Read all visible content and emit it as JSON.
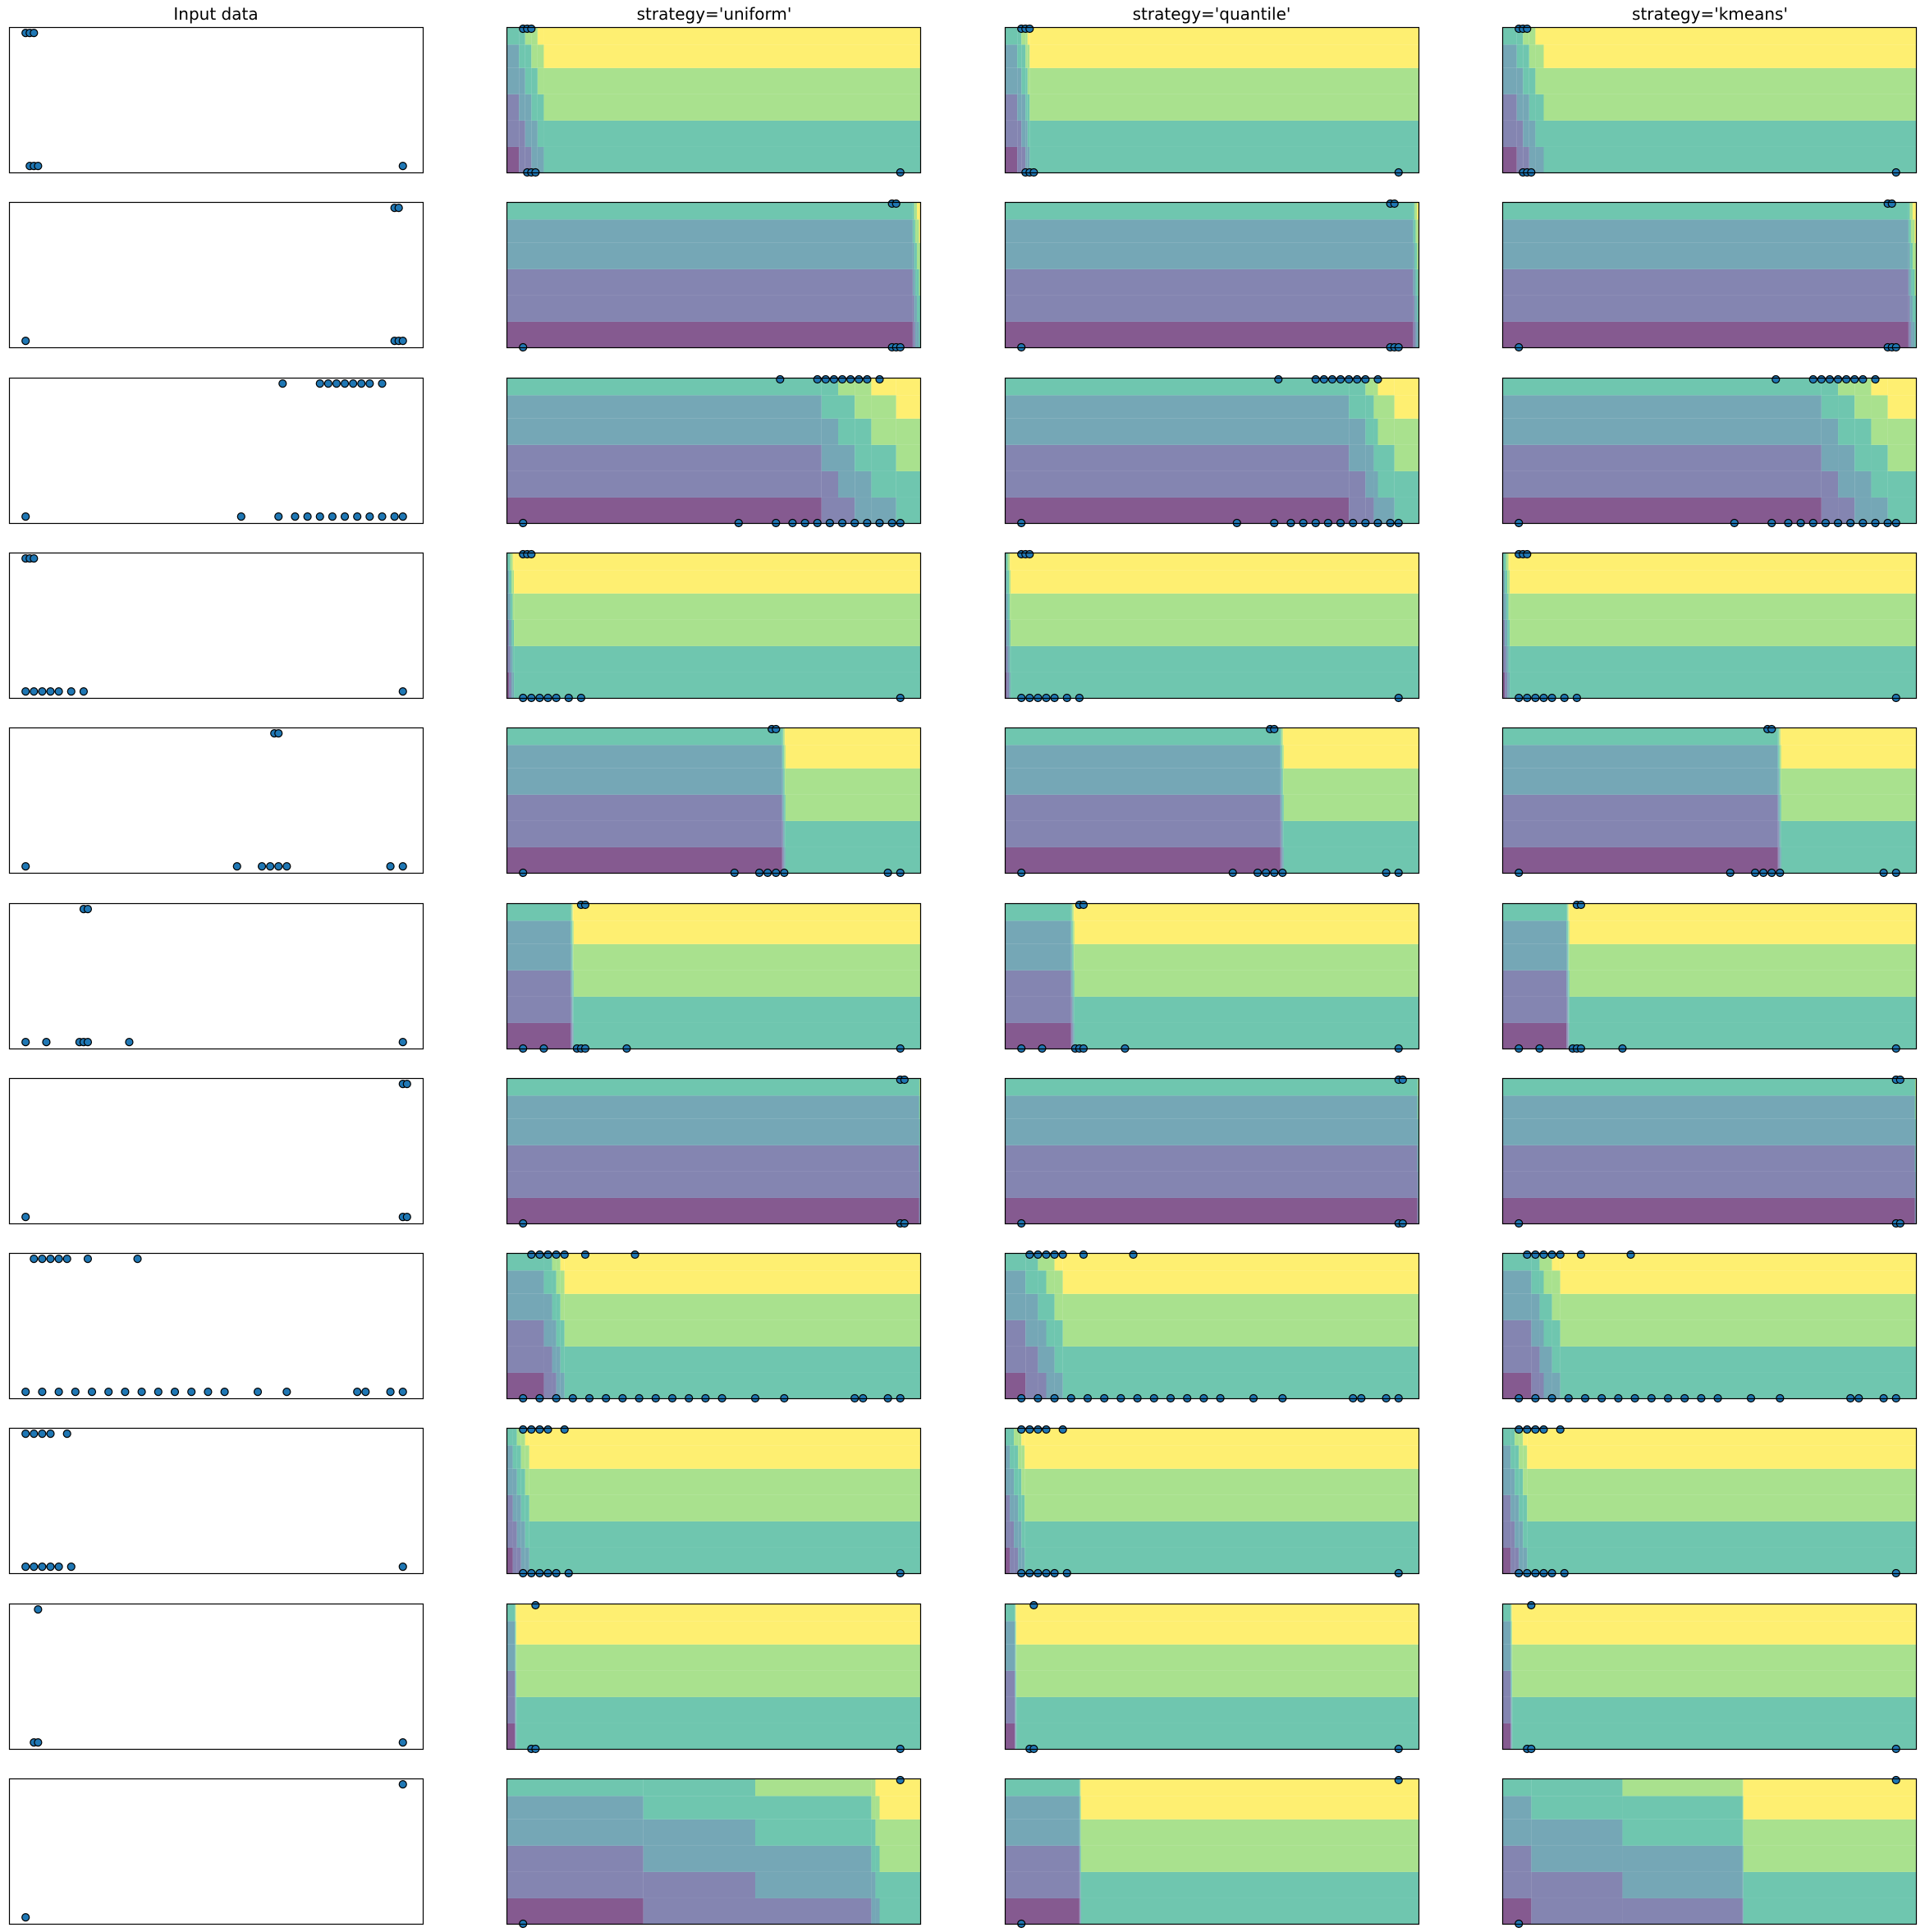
{
  "titles": [
    "Input data",
    "strategy='uniform'",
    "strategy='quantile'",
    "strategy='kmeans'"
  ],
  "colors": {
    "marker_face": "#1f77b4",
    "marker_edge": "#000000",
    "frame": "#000000",
    "colormap": "viridis",
    "overlay_alpha": 0.55
  },
  "chart_data": {
    "type": "scatter",
    "grid": false,
    "ticks": "none",
    "n_bins": 6,
    "rows": [
      {
        "xlim": [
          0,
          1
        ],
        "ylim": [
          0,
          1
        ],
        "points": [
          [
            0.04,
            0.96
          ],
          [
            0.05,
            0.96
          ],
          [
            0.06,
            0.96
          ],
          [
            0.05,
            0.05
          ],
          [
            0.06,
            0.05
          ],
          [
            0.07,
            0.05
          ],
          [
            0.95,
            0.05
          ]
        ],
        "edges": {
          "uniform": [
            0,
            0.03,
            0.045,
            0.06,
            0.075,
            0.09,
            1
          ],
          "quantile": [
            0,
            0.03,
            0.04,
            0.05,
            0.055,
            0.06,
            1
          ],
          "kmeans": [
            0,
            0.035,
            0.05,
            0.065,
            0.08,
            0.1,
            1
          ]
        }
      },
      {
        "xlim": [
          0,
          1
        ],
        "ylim": [
          0,
          1
        ],
        "points": [
          [
            0.93,
            0.96
          ],
          [
            0.94,
            0.96
          ],
          [
            0.04,
            0.05
          ],
          [
            0.93,
            0.05
          ],
          [
            0.94,
            0.05
          ],
          [
            0.95,
            0.05
          ]
        ],
        "edges": {
          "uniform": [
            0,
            0.98,
            0.983,
            0.986,
            0.99,
            0.995,
            1
          ],
          "quantile": [
            0,
            0.985,
            0.988,
            0.991,
            0.994,
            0.997,
            1
          ],
          "kmeans": [
            0,
            0.98,
            0.983,
            0.986,
            0.99,
            0.995,
            1
          ]
        }
      },
      {
        "xlim": [
          0,
          1
        ],
        "ylim": [
          0,
          1
        ],
        "points": [
          [
            0.66,
            0.96
          ],
          [
            0.75,
            0.96
          ],
          [
            0.77,
            0.96
          ],
          [
            0.79,
            0.96
          ],
          [
            0.81,
            0.96
          ],
          [
            0.83,
            0.96
          ],
          [
            0.85,
            0.96
          ],
          [
            0.87,
            0.96
          ],
          [
            0.9,
            0.96
          ],
          [
            0.04,
            0.05
          ],
          [
            0.56,
            0.05
          ],
          [
            0.65,
            0.05
          ],
          [
            0.69,
            0.05
          ],
          [
            0.72,
            0.05
          ],
          [
            0.75,
            0.05
          ],
          [
            0.78,
            0.05
          ],
          [
            0.81,
            0.05
          ],
          [
            0.84,
            0.05
          ],
          [
            0.87,
            0.05
          ],
          [
            0.9,
            0.05
          ],
          [
            0.93,
            0.05
          ],
          [
            0.95,
            0.05
          ]
        ],
        "edges": {
          "uniform": [
            0,
            0.76,
            0.8,
            0.84,
            0.88,
            0.94,
            1
          ],
          "quantile": [
            0,
            0.83,
            0.87,
            0.89,
            0.9,
            0.94,
            1
          ],
          "kmeans": [
            0,
            0.77,
            0.81,
            0.85,
            0.89,
            0.93,
            1
          ]
        }
      },
      {
        "xlim": [
          0,
          1
        ],
        "ylim": [
          0,
          1
        ],
        "points": [
          [
            0.04,
            0.96
          ],
          [
            0.05,
            0.96
          ],
          [
            0.06,
            0.96
          ],
          [
            0.04,
            0.05
          ],
          [
            0.06,
            0.05
          ],
          [
            0.08,
            0.05
          ],
          [
            0.1,
            0.05
          ],
          [
            0.12,
            0.05
          ],
          [
            0.15,
            0.05
          ],
          [
            0.18,
            0.05
          ],
          [
            0.95,
            0.05
          ]
        ],
        "edges": {
          "uniform": [
            0,
            0.006,
            0.009,
            0.012,
            0.015,
            0.018,
            1
          ],
          "quantile": [
            0,
            0.004,
            0.007,
            0.01,
            0.012,
            0.014,
            1
          ],
          "kmeans": [
            0,
            0.006,
            0.009,
            0.012,
            0.015,
            0.018,
            1
          ]
        }
      },
      {
        "xlim": [
          0,
          1
        ],
        "ylim": [
          0,
          1
        ],
        "points": [
          [
            0.64,
            0.96
          ],
          [
            0.65,
            0.96
          ],
          [
            0.04,
            0.05
          ],
          [
            0.55,
            0.05
          ],
          [
            0.61,
            0.05
          ],
          [
            0.63,
            0.05
          ],
          [
            0.65,
            0.05
          ],
          [
            0.67,
            0.05
          ],
          [
            0.92,
            0.05
          ],
          [
            0.95,
            0.05
          ]
        ],
        "edges": {
          "uniform": [
            0,
            0.665,
            0.667,
            0.669,
            0.671,
            0.673,
            1
          ],
          "quantile": [
            0,
            0.665,
            0.667,
            0.669,
            0.671,
            0.673,
            1
          ],
          "kmeans": [
            0,
            0.665,
            0.667,
            0.669,
            0.671,
            0.673,
            1
          ]
        }
      },
      {
        "xlim": [
          0,
          1
        ],
        "ylim": [
          0,
          1
        ],
        "points": [
          [
            0.18,
            0.96
          ],
          [
            0.19,
            0.96
          ],
          [
            0.04,
            0.05
          ],
          [
            0.09,
            0.05
          ],
          [
            0.17,
            0.05
          ],
          [
            0.18,
            0.05
          ],
          [
            0.19,
            0.05
          ],
          [
            0.29,
            0.05
          ],
          [
            0.95,
            0.05
          ]
        ],
        "edges": {
          "uniform": [
            0,
            0.155,
            0.157,
            0.159,
            0.16,
            0.162,
            1
          ],
          "quantile": [
            0,
            0.16,
            0.162,
            0.164,
            0.166,
            0.168,
            1
          ],
          "kmeans": [
            0,
            0.155,
            0.157,
            0.159,
            0.16,
            0.162,
            1
          ]
        }
      },
      {
        "xlim": [
          0,
          1
        ],
        "ylim": [
          0,
          1
        ],
        "points": [
          [
            0.95,
            0.96
          ],
          [
            0.96,
            0.96
          ],
          [
            0.04,
            0.05
          ],
          [
            0.95,
            0.05
          ],
          [
            0.96,
            0.05
          ]
        ],
        "edges": {
          "uniform": [
            0,
            0.995,
            0.996,
            0.997,
            0.998,
            0.999,
            1
          ],
          "quantile": [
            0,
            0.995,
            0.996,
            0.997,
            0.998,
            0.999,
            1
          ],
          "kmeans": [
            0,
            0.995,
            0.996,
            0.997,
            0.998,
            0.999,
            1
          ]
        }
      },
      {
        "xlim": [
          0,
          1
        ],
        "ylim": [
          0,
          1
        ],
        "points": [
          [
            0.06,
            0.96
          ],
          [
            0.08,
            0.96
          ],
          [
            0.1,
            0.96
          ],
          [
            0.12,
            0.96
          ],
          [
            0.14,
            0.96
          ],
          [
            0.19,
            0.96
          ],
          [
            0.31,
            0.96
          ],
          [
            0.04,
            0.05
          ],
          [
            0.08,
            0.05
          ],
          [
            0.12,
            0.05
          ],
          [
            0.16,
            0.05
          ],
          [
            0.2,
            0.05
          ],
          [
            0.24,
            0.05
          ],
          [
            0.28,
            0.05
          ],
          [
            0.32,
            0.05
          ],
          [
            0.36,
            0.05
          ],
          [
            0.4,
            0.05
          ],
          [
            0.44,
            0.05
          ],
          [
            0.48,
            0.05
          ],
          [
            0.52,
            0.05
          ],
          [
            0.6,
            0.05
          ],
          [
            0.67,
            0.05
          ],
          [
            0.84,
            0.05
          ],
          [
            0.86,
            0.05
          ],
          [
            0.92,
            0.05
          ],
          [
            0.95,
            0.05
          ]
        ],
        "edges": {
          "uniform": [
            0,
            0.09,
            0.11,
            0.12,
            0.13,
            0.14,
            1
          ],
          "quantile": [
            0,
            0.05,
            0.08,
            0.1,
            0.12,
            0.14,
            1
          ],
          "kmeans": [
            0,
            0.07,
            0.09,
            0.1,
            0.12,
            0.14,
            1
          ]
        }
      },
      {
        "xlim": [
          0,
          1
        ],
        "ylim": [
          0,
          1
        ],
        "points": [
          [
            0.04,
            0.96
          ],
          [
            0.06,
            0.96
          ],
          [
            0.08,
            0.96
          ],
          [
            0.1,
            0.96
          ],
          [
            0.14,
            0.96
          ],
          [
            0.04,
            0.05
          ],
          [
            0.06,
            0.05
          ],
          [
            0.08,
            0.05
          ],
          [
            0.1,
            0.05
          ],
          [
            0.12,
            0.05
          ],
          [
            0.15,
            0.05
          ],
          [
            0.95,
            0.05
          ]
        ],
        "edges": {
          "uniform": [
            0,
            0.015,
            0.025,
            0.035,
            0.045,
            0.055,
            1
          ],
          "quantile": [
            0,
            0.012,
            0.022,
            0.032,
            0.04,
            0.048,
            1
          ],
          "kmeans": [
            0,
            0.02,
            0.03,
            0.04,
            0.05,
            0.06,
            1
          ]
        }
      },
      {
        "xlim": [
          0,
          1
        ],
        "ylim": [
          0,
          1
        ],
        "points": [
          [
            0.07,
            0.96
          ],
          [
            0.06,
            0.05
          ],
          [
            0.07,
            0.05
          ],
          [
            0.95,
            0.05
          ]
        ],
        "edges": {
          "uniform": [
            0,
            0.02,
            0.021,
            0.022,
            0.023,
            0.024,
            1
          ],
          "quantile": [
            0,
            0.024,
            0.025,
            0.026,
            0.027,
            0.028,
            1
          ],
          "kmeans": [
            0,
            0.02,
            0.021,
            0.022,
            0.023,
            0.024,
            1
          ]
        }
      },
      {
        "xlim": [
          0,
          1
        ],
        "ylim": [
          0,
          1
        ],
        "points": [
          [
            0.95,
            0.96
          ],
          [
            0.04,
            0.05
          ]
        ],
        "edges": {
          "uniform": [
            0,
            0.33,
            0.6,
            0.88,
            0.89,
            0.9,
            1
          ],
          "quantile": [
            0,
            0.18,
            0.181,
            0.182,
            0.183,
            0.184,
            1
          ],
          "kmeans": [
            0,
            0.07,
            0.29,
            0.58,
            0.581,
            0.582,
            1
          ]
        }
      }
    ]
  }
}
